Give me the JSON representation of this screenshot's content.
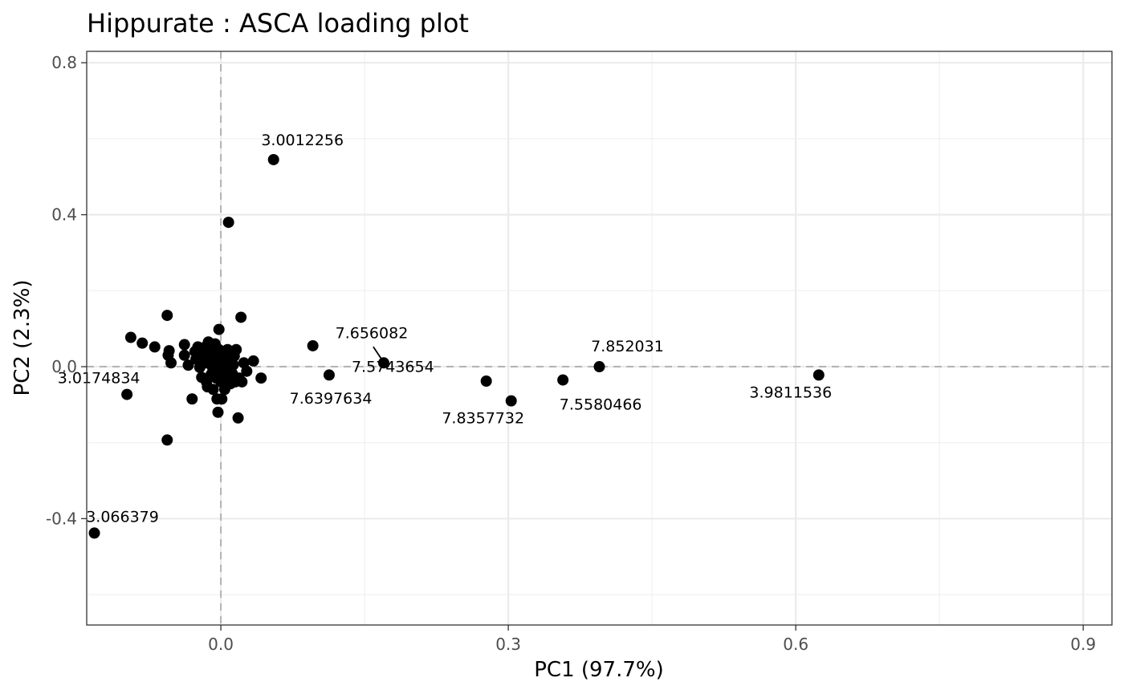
{
  "chart_data": {
    "type": "scatter",
    "title": "Hippurate : ASCA loading plot",
    "xlabel": "PC1 (97.7%)",
    "ylabel": "PC2 (2.3%)",
    "xlim": [
      -0.14,
      0.93
    ],
    "ylim": [
      -0.68,
      0.83
    ],
    "x_ticks": [
      0.0,
      0.3,
      0.6,
      0.9
    ],
    "x_tick_labels": [
      "0.0",
      "0.3",
      "0.6",
      "0.9"
    ],
    "y_ticks": [
      -0.4,
      0.0,
      0.4,
      0.8
    ],
    "y_tick_labels": [
      "-0.4",
      "0.0",
      "0.4",
      "0.8"
    ],
    "grid": true,
    "reference_lines": {
      "x": 0,
      "y": 0,
      "style": "dashed"
    },
    "point_color": "#000000",
    "points": [
      {
        "x": 0.055,
        "y": 0.545,
        "label": "3.0012256"
      },
      {
        "x": 0.008,
        "y": 0.38
      },
      {
        "x": 0.096,
        "y": 0.055
      },
      {
        "x": 0.17,
        "y": 0.01,
        "label": "7.656082"
      },
      {
        "x": 0.113,
        "y": -0.022,
        "label": "7.5743654"
      },
      {
        "x": 0.277,
        "y": -0.038,
        "label": "7.6397634"
      },
      {
        "x": 0.303,
        "y": -0.09,
        "label": "7.8357732"
      },
      {
        "x": 0.357,
        "y": -0.035,
        "label": "7.5580466"
      },
      {
        "x": 0.395,
        "y": 0.0,
        "label": "7.852031"
      },
      {
        "x": 0.624,
        "y": -0.022,
        "label": "3.9811536"
      },
      {
        "x": -0.098,
        "y": -0.073,
        "label": "3.0174834"
      },
      {
        "x": -0.132,
        "y": -0.438,
        "label": "3.066379"
      },
      {
        "x": -0.056,
        "y": -0.193
      },
      {
        "x": -0.056,
        "y": 0.135
      },
      {
        "x": -0.094,
        "y": 0.077
      },
      {
        "x": -0.082,
        "y": 0.062
      },
      {
        "x": -0.069,
        "y": 0.052
      },
      {
        "x": -0.054,
        "y": 0.042
      },
      {
        "x": -0.052,
        "y": 0.01
      },
      {
        "x": -0.055,
        "y": 0.03
      },
      {
        "x": -0.038,
        "y": 0.03
      },
      {
        "x": -0.038,
        "y": 0.058
      },
      {
        "x": -0.034,
        "y": 0.004
      },
      {
        "x": -0.03,
        "y": -0.085
      },
      {
        "x": -0.027,
        "y": 0.04
      },
      {
        "x": -0.026,
        "y": 0.02
      },
      {
        "x": -0.024,
        "y": 0.052
      },
      {
        "x": -0.022,
        "y": -0.002
      },
      {
        "x": -0.02,
        "y": 0.03
      },
      {
        "x": -0.018,
        "y": 0.05
      },
      {
        "x": -0.016,
        "y": 0.01
      },
      {
        "x": -0.015,
        "y": -0.04
      },
      {
        "x": -0.014,
        "y": -0.053
      },
      {
        "x": -0.012,
        "y": 0.04
      },
      {
        "x": -0.011,
        "y": 0.022
      },
      {
        "x": -0.01,
        "y": -0.02
      },
      {
        "x": -0.009,
        "y": 0.0
      },
      {
        "x": -0.008,
        "y": -0.06
      },
      {
        "x": -0.007,
        "y": 0.03
      },
      {
        "x": -0.006,
        "y": 0.06
      },
      {
        "x": -0.006,
        "y": 0.015
      },
      {
        "x": -0.005,
        "y": -0.03
      },
      {
        "x": -0.004,
        "y": -0.085
      },
      {
        "x": -0.003,
        "y": -0.005
      },
      {
        "x": -0.002,
        "y": 0.045
      },
      {
        "x": -0.001,
        "y": 0.02
      },
      {
        "x": -0.003,
        "y": -0.12
      },
      {
        "x": -0.002,
        "y": 0.098
      },
      {
        "x": 0.0,
        "y": -0.04
      },
      {
        "x": 0.0,
        "y": 0.005
      },
      {
        "x": 0.001,
        "y": -0.085
      },
      {
        "x": 0.002,
        "y": -0.015
      },
      {
        "x": 0.003,
        "y": 0.035
      },
      {
        "x": 0.004,
        "y": -0.06
      },
      {
        "x": 0.005,
        "y": 0.01
      },
      {
        "x": 0.006,
        "y": -0.03
      },
      {
        "x": 0.007,
        "y": 0.045
      },
      {
        "x": 0.008,
        "y": -0.005
      },
      {
        "x": 0.009,
        "y": 0.025
      },
      {
        "x": 0.01,
        "y": -0.045
      },
      {
        "x": 0.011,
        "y": 0.04
      },
      {
        "x": 0.012,
        "y": -0.018
      },
      {
        "x": 0.013,
        "y": 0.005
      },
      {
        "x": 0.014,
        "y": 0.028
      },
      {
        "x": 0.015,
        "y": -0.04
      },
      {
        "x": 0.016,
        "y": 0.045
      },
      {
        "x": 0.018,
        "y": -0.135
      },
      {
        "x": 0.019,
        "y": -0.03
      },
      {
        "x": 0.021,
        "y": 0.13
      },
      {
        "x": 0.022,
        "y": -0.04
      },
      {
        "x": 0.024,
        "y": 0.01
      },
      {
        "x": 0.027,
        "y": -0.012
      },
      {
        "x": 0.034,
        "y": 0.015
      },
      {
        "x": 0.042,
        "y": -0.03
      },
      {
        "x": -0.013,
        "y": 0.065
      },
      {
        "x": -0.02,
        "y": -0.028
      },
      {
        "x": 0.003,
        "y": 0.01
      },
      {
        "x": -0.006,
        "y": -0.01
      },
      {
        "x": 0.009,
        "y": 0.005
      }
    ]
  }
}
